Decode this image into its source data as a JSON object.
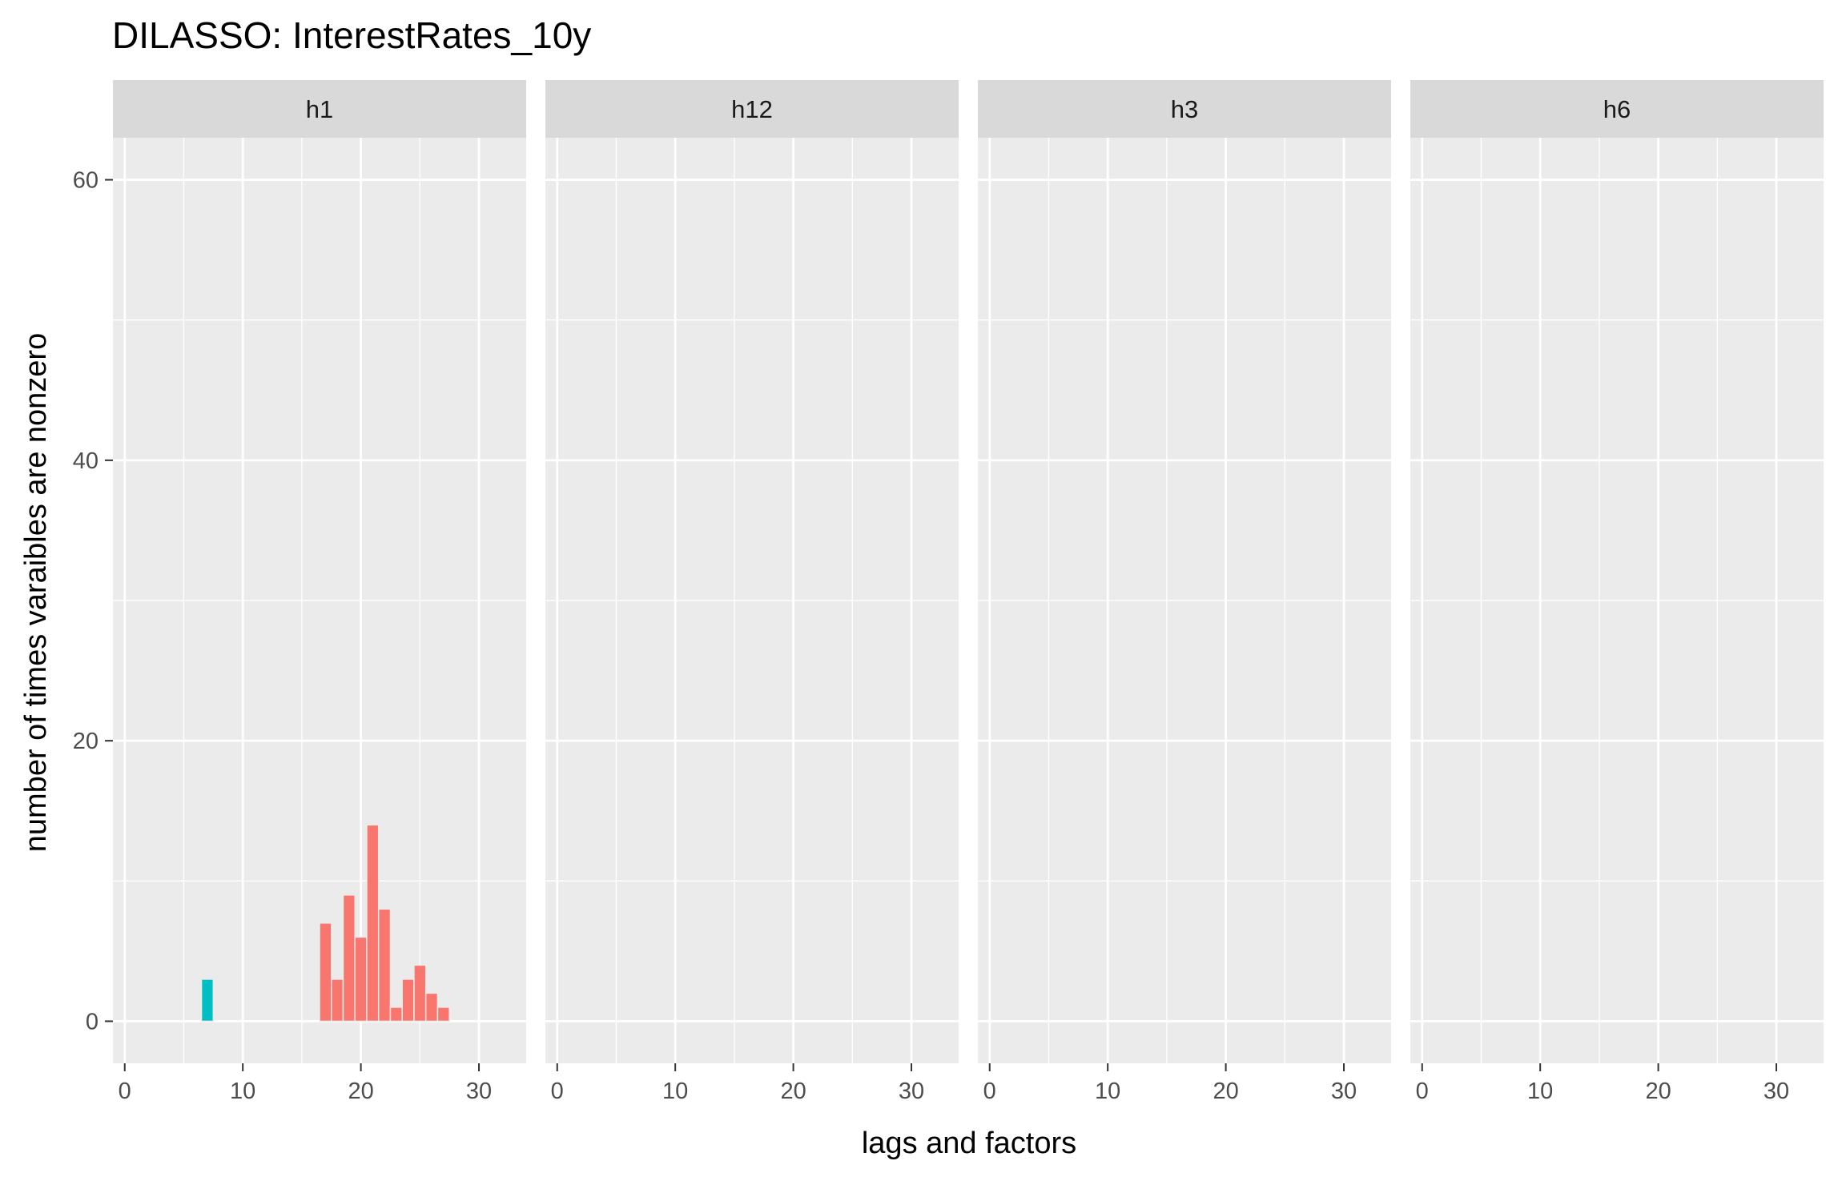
{
  "chart_data": {
    "type": "bar",
    "title": "DILASSO: InterestRates_10y",
    "xlabel": "lags and factors",
    "ylabel": "number of times varaibles are nonzero",
    "xlim": [
      -1,
      34
    ],
    "ylim": [
      -3,
      63
    ],
    "x_ticks": [
      "0",
      "10",
      "20",
      "30"
    ],
    "y_ticks": [
      "0",
      "20",
      "40",
      "60"
    ],
    "grid": true,
    "legend": "none",
    "colors": {
      "lag": "#00BFC4",
      "factor": "#F8766D"
    },
    "panels": [
      {
        "label": "h1",
        "series": [
          {
            "group": "lag",
            "x": [
              7
            ],
            "values": [
              3
            ]
          },
          {
            "group": "factor",
            "x": [
              17,
              18,
              19,
              20,
              21,
              22,
              23,
              24,
              25,
              26,
              27
            ],
            "values": [
              7,
              3,
              9,
              6,
              14,
              8,
              1,
              3,
              4,
              2,
              1
            ]
          }
        ]
      },
      {
        "label": "h12",
        "series": []
      },
      {
        "label": "h3",
        "series": []
      },
      {
        "label": "h6",
        "series": []
      }
    ]
  }
}
